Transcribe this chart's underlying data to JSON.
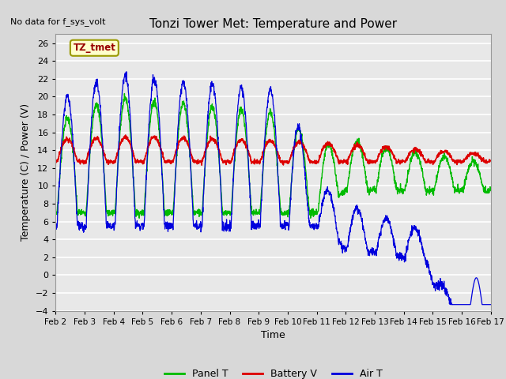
{
  "title": "Tonzi Tower Met: Temperature and Power",
  "xlabel": "Time",
  "ylabel": "Temperature (C) / Power (V)",
  "ylim": [
    -4,
    27
  ],
  "yticks": [
    -4,
    -2,
    0,
    2,
    4,
    6,
    8,
    10,
    12,
    14,
    16,
    18,
    20,
    22,
    24,
    26
  ],
  "no_data_text": "No data for f_sys_volt",
  "legend_label_text": "TZ_tmet",
  "panel_color": "#00bb00",
  "battery_color": "#dd0000",
  "air_color": "#0000dd",
  "fig_color": "#d8d8d8",
  "plot_bg_color": "#e8e8e8",
  "grid_color": "#ffffff",
  "x_start": 2,
  "x_end": 17,
  "xtick_labels": [
    "Feb 2",
    "Feb 3",
    "Feb 4",
    "Feb 5",
    "Feb 6",
    "Feb 7",
    "Feb 8",
    "Feb 9",
    "Feb 10",
    "Feb 11",
    "Feb 12",
    "Feb 13",
    "Feb 14",
    "Feb 15",
    "Feb 16",
    "Feb 17"
  ],
  "xtick_positions": [
    2,
    3,
    4,
    5,
    6,
    7,
    8,
    9,
    10,
    11,
    12,
    13,
    14,
    15,
    16,
    17
  ]
}
